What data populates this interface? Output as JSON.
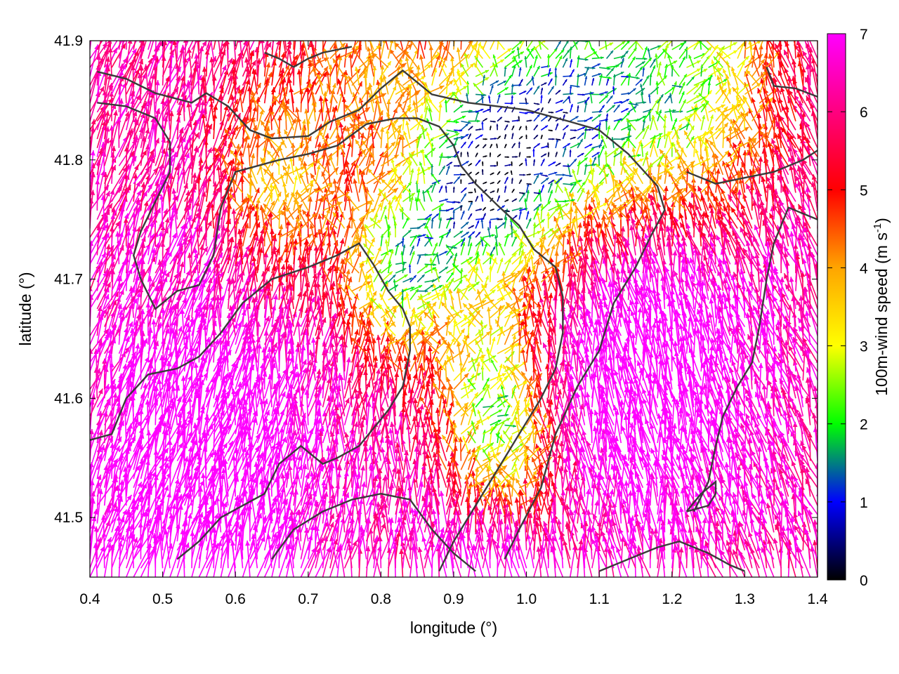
{
  "chart_data": {
    "type": "vector-field",
    "xlabel": "longitude (°)",
    "ylabel": "latitude (°)",
    "xlim": [
      0.4,
      1.4
    ],
    "ylim": [
      41.45,
      41.9
    ],
    "x_ticks": [
      "0.4",
      "0.5",
      "0.6",
      "0.7",
      "0.8",
      "0.9",
      "1.0",
      "1.1",
      "1.2",
      "1.3",
      "1.4"
    ],
    "y_ticks": [
      "41.5",
      "41.6",
      "41.7",
      "41.8",
      "41.9"
    ],
    "colorbar": {
      "label_main": "100m-wind speed (m s",
      "label_sup": "-1",
      "label_end": ")",
      "range": [
        0,
        7
      ],
      "ticks": [
        "0",
        "1",
        "2",
        "3",
        "4",
        "5",
        "6",
        "7"
      ],
      "stops": [
        "#000000",
        "#0000ff",
        "#00ff00",
        "#ffff00",
        "#ffa500",
        "#ff0000",
        "#ff00ff"
      ]
    },
    "vector_field": {
      "lon_range": [
        0.4,
        1.4
      ],
      "lat_range": [
        41.45,
        41.9
      ],
      "lon_step": 0.01,
      "lat_step": 0.0075,
      "speed_range_ms": [
        0,
        7
      ],
      "dominant_direction": "southerly flow (towards north)"
    },
    "coastlines": [
      [
        [
          0.41,
          41.874
        ],
        [
          0.45,
          41.868
        ],
        [
          0.49,
          41.856
        ],
        [
          0.54,
          41.848
        ],
        [
          0.56,
          41.856
        ],
        [
          0.59,
          41.845
        ],
        [
          0.62,
          41.825
        ],
        [
          0.65,
          41.818
        ],
        [
          0.7,
          41.82
        ],
        [
          0.73,
          41.832
        ],
        [
          0.77,
          41.842
        ],
        [
          0.8,
          41.86
        ],
        [
          0.83,
          41.875
        ],
        [
          0.87,
          41.855
        ],
        [
          0.92,
          41.848
        ],
        [
          1.0,
          41.842
        ],
        [
          1.06,
          41.832
        ],
        [
          1.1,
          41.825
        ],
        [
          1.14,
          41.805
        ],
        [
          1.18,
          41.778
        ],
        [
          1.19,
          41.758
        ],
        [
          1.17,
          41.735
        ],
        [
          1.15,
          41.71
        ],
        [
          1.12,
          41.68
        ],
        [
          1.1,
          41.64
        ],
        [
          1.07,
          41.61
        ],
        [
          1.04,
          41.57
        ],
        [
          1.02,
          41.525
        ],
        [
          0.99,
          41.49
        ],
        [
          0.97,
          41.465
        ]
      ],
      [
        [
          0.41,
          41.848
        ],
        [
          0.45,
          41.845
        ],
        [
          0.49,
          41.835
        ],
        [
          0.51,
          41.815
        ],
        [
          0.51,
          41.79
        ],
        [
          0.49,
          41.765
        ],
        [
          0.47,
          41.74
        ],
        [
          0.46,
          41.72
        ],
        [
          0.47,
          41.7
        ],
        [
          0.49,
          41.675
        ],
        [
          0.52,
          41.69
        ],
        [
          0.55,
          41.695
        ],
        [
          0.57,
          41.72
        ],
        [
          0.58,
          41.76
        ],
        [
          0.6,
          41.79
        ],
        [
          0.63,
          41.795
        ],
        [
          0.66,
          41.8
        ],
        [
          0.7,
          41.805
        ],
        [
          0.74,
          41.812
        ],
        [
          0.78,
          41.83
        ],
        [
          0.82,
          41.835
        ],
        [
          0.85,
          41.835
        ],
        [
          0.88,
          41.828
        ],
        [
          0.9,
          41.812
        ],
        [
          0.91,
          41.795
        ],
        [
          0.93,
          41.78
        ],
        [
          0.96,
          41.762
        ],
        [
          0.99,
          41.745
        ],
        [
          1.01,
          41.725
        ],
        [
          1.04,
          41.71
        ],
        [
          1.05,
          41.685
        ],
        [
          1.05,
          41.655
        ],
        [
          1.04,
          41.625
        ],
        [
          1.02,
          41.6
        ],
        [
          0.99,
          41.57
        ],
        [
          0.96,
          41.54
        ],
        [
          0.93,
          41.51
        ],
        [
          0.9,
          41.48
        ],
        [
          0.88,
          41.455
        ]
      ],
      [
        [
          0.4,
          41.565
        ],
        [
          0.43,
          41.57
        ],
        [
          0.45,
          41.6
        ],
        [
          0.48,
          41.62
        ],
        [
          0.52,
          41.625
        ],
        [
          0.55,
          41.635
        ],
        [
          0.58,
          41.655
        ],
        [
          0.61,
          41.68
        ],
        [
          0.65,
          41.7
        ],
        [
          0.7,
          41.71
        ],
        [
          0.74,
          41.72
        ],
        [
          0.77,
          41.73
        ],
        [
          0.79,
          41.712
        ],
        [
          0.81,
          41.69
        ],
        [
          0.83,
          41.675
        ],
        [
          0.84,
          41.66
        ],
        [
          0.84,
          41.64
        ],
        [
          0.83,
          41.61
        ],
        [
          0.81,
          41.59
        ],
        [
          0.79,
          41.575
        ],
        [
          0.77,
          41.56
        ],
        [
          0.74,
          41.55
        ],
        [
          0.72,
          41.545
        ],
        [
          0.69,
          41.56
        ],
        [
          0.66,
          41.545
        ],
        [
          0.64,
          41.52
        ],
        [
          0.61,
          41.51
        ],
        [
          0.58,
          41.5
        ],
        [
          0.55,
          41.48
        ],
        [
          0.52,
          41.465
        ]
      ],
      [
        [
          0.65,
          41.465
        ],
        [
          0.68,
          41.49
        ],
        [
          0.72,
          41.505
        ],
        [
          0.76,
          41.515
        ],
        [
          0.8,
          41.52
        ],
        [
          0.84,
          41.515
        ],
        [
          0.87,
          41.49
        ],
        [
          0.9,
          41.47
        ],
        [
          0.93,
          41.455
        ]
      ],
      [
        [
          1.1,
          41.455
        ],
        [
          1.14,
          41.465
        ],
        [
          1.18,
          41.475
        ],
        [
          1.21,
          41.48
        ],
        [
          1.25,
          41.47
        ],
        [
          1.28,
          41.46
        ],
        [
          1.3,
          41.455
        ]
      ],
      [
        [
          1.22,
          41.505
        ],
        [
          1.25,
          41.51
        ],
        [
          1.26,
          41.52
        ],
        [
          1.26,
          41.53
        ],
        [
          1.24,
          41.52
        ],
        [
          1.22,
          41.505
        ]
      ],
      [
        [
          1.4,
          41.75
        ],
        [
          1.36,
          41.76
        ],
        [
          1.34,
          41.73
        ],
        [
          1.33,
          41.7
        ],
        [
          1.32,
          41.66
        ],
        [
          1.31,
          41.63
        ],
        [
          1.29,
          41.61
        ],
        [
          1.27,
          41.585
        ],
        [
          1.26,
          41.56
        ],
        [
          1.25,
          41.53
        ],
        [
          1.23,
          41.505
        ]
      ],
      [
        [
          1.33,
          41.878
        ],
        [
          1.34,
          41.862
        ],
        [
          1.37,
          41.86
        ],
        [
          1.4,
          41.853
        ]
      ],
      [
        [
          0.76,
          41.895
        ],
        [
          0.72,
          41.89
        ],
        [
          0.7,
          41.885
        ],
        [
          0.68,
          41.878
        ],
        [
          0.66,
          41.885
        ],
        [
          0.64,
          41.89
        ]
      ],
      [
        [
          1.22,
          41.79
        ],
        [
          1.26,
          41.78
        ],
        [
          1.3,
          41.785
        ],
        [
          1.34,
          41.79
        ],
        [
          1.38,
          41.8
        ],
        [
          1.4,
          41.808
        ]
      ]
    ]
  }
}
